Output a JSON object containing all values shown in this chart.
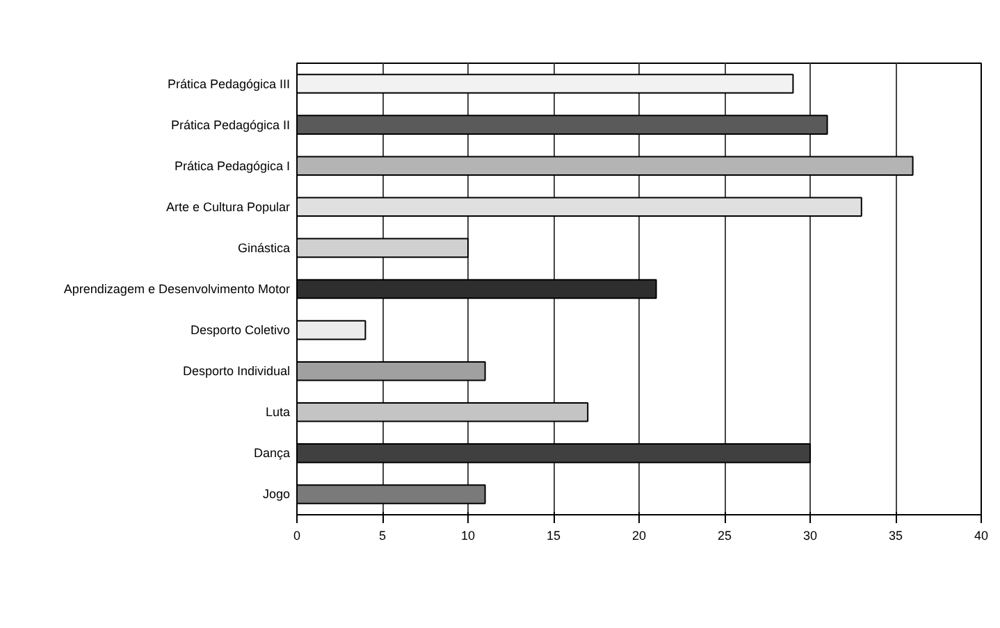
{
  "chart_data": {
    "type": "bar",
    "orientation": "horizontal",
    "categories": [
      "Prática Pedagógica III",
      "Prática Pedagógica II",
      "Prática Pedagógica I",
      "Arte e Cultura Popular",
      "Ginástica",
      "Aprendizagem e Desenvolvimento Motor",
      "Desporto Coletivo",
      "Desporto Individual",
      "Luta",
      "Dança",
      "Jogo"
    ],
    "values": [
      29,
      31,
      36,
      33,
      10,
      21,
      4,
      11,
      17,
      30,
      11
    ],
    "colors": [
      "#f2f2f2",
      "#5a5a5a",
      "#b4b4b4",
      "#e0e0e0",
      "#d0d0d0",
      "#2e2e2e",
      "#ececec",
      "#a0a0a0",
      "#c4c4c4",
      "#404040",
      "#7a7a7a"
    ],
    "xlim": [
      0,
      40
    ],
    "xticks": [
      0,
      5,
      10,
      15,
      20,
      25,
      30,
      35,
      40
    ],
    "grid": "x"
  }
}
